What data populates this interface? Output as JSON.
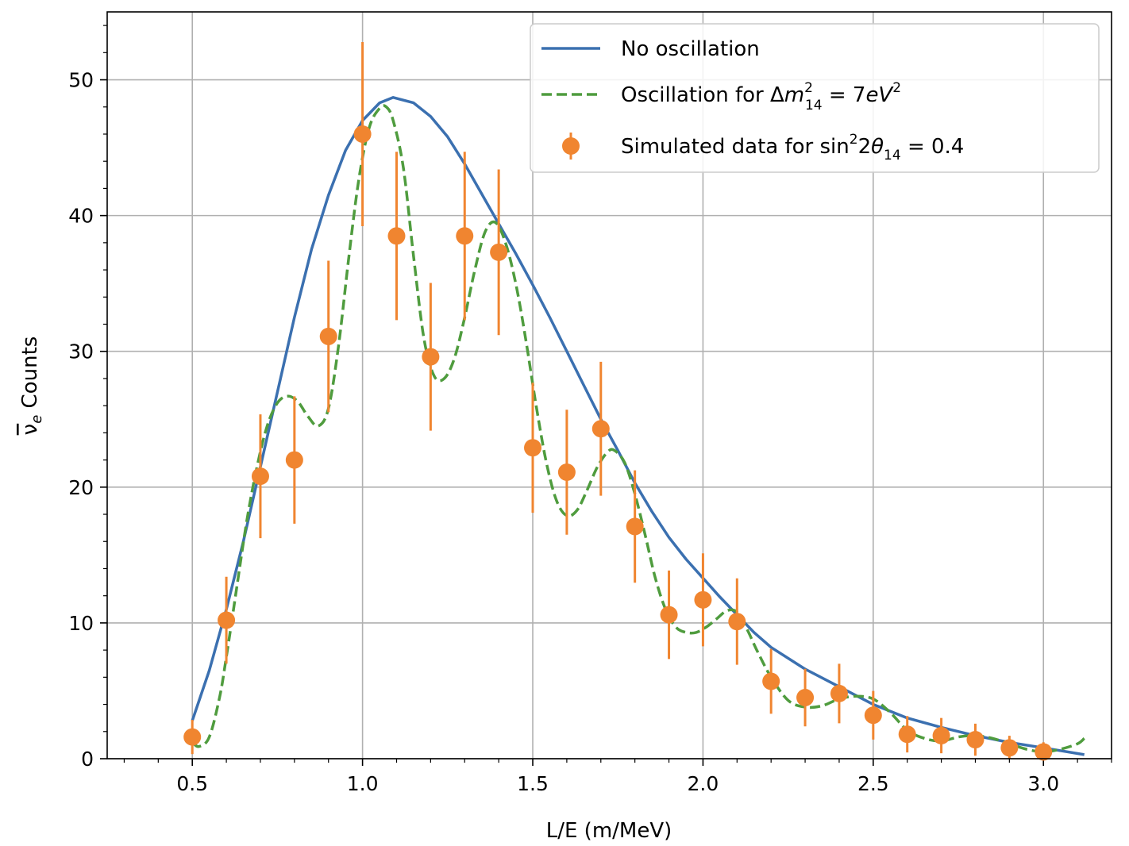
{
  "chart_data": {
    "type": "line",
    "title": "",
    "xlabel": "L/E (m/MeV)",
    "ylabel_symbol": "ν",
    "ylabel_subscript": "e",
    "ylabel_text": "Counts",
    "xlim": [
      0.25,
      3.2
    ],
    "ylim": [
      0,
      55
    ],
    "xticks": [
      0.5,
      1.0,
      1.5,
      2.0,
      2.5,
      3.0
    ],
    "xtick_labels": [
      "0.5",
      "1.0",
      "1.5",
      "2.0",
      "2.5",
      "3.0"
    ],
    "yticks": [
      0,
      10,
      20,
      30,
      40,
      50
    ],
    "ytick_labels": [
      "0",
      "10",
      "20",
      "30",
      "40",
      "50"
    ],
    "grid": true,
    "legend_position": "top-right",
    "legend": {
      "no_osc": "No oscillation",
      "osc_prefix": "Oscillation for Δ",
      "osc_m": "m",
      "osc_sup": "2",
      "osc_sub": "14",
      "osc_eq": " = 7",
      "osc_ev": "eV",
      "osc_ev_sup": "2",
      "data_prefix": "Simulated data for sin",
      "data_sup": "2",
      "data_mid": "2",
      "data_theta": "θ",
      "data_sub": "14",
      "data_suffix": " = 0.4"
    },
    "colors": {
      "no_osc": "#3b70b0",
      "osc": "#4f9c3e",
      "data": "#f08530",
      "grid": "#b0b0b0"
    },
    "no_osc_curve": {
      "x": [
        0.5,
        0.55,
        0.6,
        0.65,
        0.7,
        0.75,
        0.8,
        0.85,
        0.9,
        0.95,
        1.0,
        1.05,
        1.09,
        1.15,
        1.2,
        1.25,
        1.3,
        1.35,
        1.4,
        1.45,
        1.5,
        1.55,
        1.6,
        1.65,
        1.7,
        1.75,
        1.8,
        1.85,
        1.9,
        1.95,
        2.0,
        2.05,
        2.1,
        2.15,
        2.2,
        2.3,
        2.4,
        2.5,
        2.6,
        2.7,
        2.8,
        2.9,
        3.0,
        3.12
      ],
      "y": [
        2.8,
        6.5,
        11.0,
        16.0,
        21.5,
        27.0,
        32.5,
        37.5,
        41.5,
        44.8,
        47.0,
        48.3,
        48.7,
        48.3,
        47.3,
        45.8,
        43.8,
        41.6,
        39.4,
        37.2,
        34.9,
        32.5,
        30.0,
        27.5,
        25.0,
        22.7,
        20.3,
        18.2,
        16.3,
        14.7,
        13.3,
        11.9,
        10.6,
        9.3,
        8.2,
        6.6,
        5.3,
        4.0,
        3.0,
        2.3,
        1.7,
        1.2,
        0.8,
        0.3
      ]
    },
    "osc_curve": {
      "x": [
        0.5,
        0.52,
        0.55,
        0.58,
        0.6,
        0.63,
        0.66,
        0.69,
        0.72,
        0.75,
        0.78,
        0.81,
        0.84,
        0.87,
        0.9,
        0.93,
        0.96,
        0.99,
        1.02,
        1.05,
        1.07,
        1.09,
        1.12,
        1.15,
        1.18,
        1.21,
        1.24,
        1.27,
        1.3,
        1.33,
        1.36,
        1.39,
        1.42,
        1.45,
        1.48,
        1.51,
        1.54,
        1.57,
        1.6,
        1.63,
        1.66,
        1.69,
        1.72,
        1.74,
        1.77,
        1.8,
        1.83,
        1.86,
        1.89,
        1.92,
        1.95,
        1.98,
        2.01,
        2.04,
        2.07,
        2.1,
        2.13,
        2.16,
        2.2,
        2.25,
        2.3,
        2.35,
        2.4,
        2.45,
        2.5,
        2.55,
        2.6,
        2.65,
        2.7,
        2.75,
        2.8,
        2.85,
        2.9,
        2.95,
        3.0,
        3.05,
        3.1,
        3.12
      ],
      "y": [
        1.2,
        0.9,
        1.6,
        4.5,
        7.5,
        12.5,
        17.5,
        21.5,
        24.5,
        26.2,
        26.7,
        26.3,
        25.2,
        24.5,
        25.8,
        30.5,
        37.0,
        42.8,
        46.5,
        47.9,
        48.0,
        47.0,
        43.5,
        37.0,
        31.0,
        28.2,
        28.0,
        29.5,
        32.5,
        36.0,
        38.8,
        39.5,
        38.0,
        35.0,
        30.8,
        26.0,
        21.8,
        19.0,
        17.9,
        18.3,
        19.8,
        21.5,
        22.6,
        22.7,
        21.8,
        19.5,
        16.5,
        13.3,
        11.0,
        9.7,
        9.3,
        9.3,
        9.7,
        10.3,
        10.9,
        10.8,
        9.5,
        7.9,
        6.0,
        4.3,
        3.8,
        3.9,
        4.4,
        4.6,
        4.4,
        3.4,
        2.1,
        1.5,
        1.3,
        1.6,
        1.7,
        1.5,
        1.1,
        0.7,
        0.5,
        0.7,
        1.1,
        1.5
      ]
    },
    "data_points": {
      "x": [
        0.5,
        0.6,
        0.7,
        0.8,
        0.9,
        1.0,
        1.1,
        1.2,
        1.3,
        1.4,
        1.5,
        1.6,
        1.7,
        1.8,
        1.9,
        2.0,
        2.1,
        2.2,
        2.3,
        2.4,
        2.5,
        2.6,
        2.7,
        2.8,
        2.9,
        3.0
      ],
      "y": [
        1.6,
        10.2,
        20.8,
        22.0,
        31.1,
        46.0,
        38.5,
        29.6,
        38.5,
        37.3,
        22.9,
        21.1,
        24.3,
        17.1,
        10.6,
        11.7,
        10.1,
        5.7,
        4.5,
        4.8,
        3.2,
        1.8,
        1.7,
        1.4,
        0.8,
        0.5
      ],
      "err": [
        1.26,
        3.2,
        4.56,
        4.69,
        5.58,
        6.78,
        6.2,
        5.44,
        6.2,
        6.1,
        4.79,
        4.6,
        4.93,
        4.14,
        3.26,
        3.42,
        3.18,
        2.39,
        2.12,
        2.19,
        1.79,
        1.34,
        1.3,
        1.18,
        0.89,
        0.71
      ]
    }
  }
}
